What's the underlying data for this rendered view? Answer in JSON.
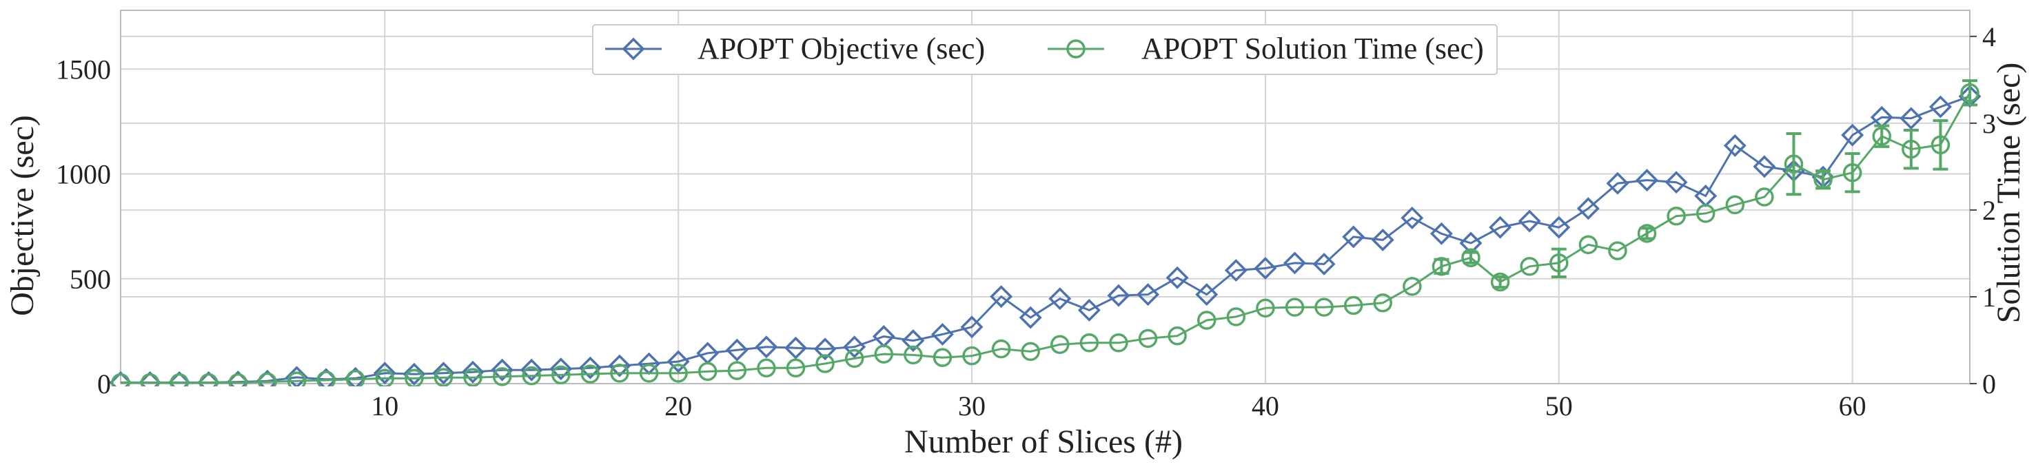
{
  "chart_data": {
    "type": "line",
    "xlabel": "Number of Slices (#)",
    "ylabel_left": "Objective (sec)",
    "ylabel_right": "Solution Time (sec)",
    "xlim": [
      1,
      64
    ],
    "ylim_left": [
      0,
      1780
    ],
    "ylim_right": [
      0,
      4.3
    ],
    "x_ticks": [
      10,
      20,
      30,
      40,
      50,
      60
    ],
    "y_ticks_left": [
      0,
      500,
      1000,
      1500
    ],
    "y_ticks_right": [
      0,
      1,
      2,
      3,
      4
    ],
    "grid": true,
    "legend_position": "top-center",
    "x": [
      1,
      2,
      3,
      4,
      5,
      6,
      7,
      8,
      9,
      10,
      11,
      12,
      13,
      14,
      15,
      16,
      17,
      18,
      19,
      20,
      21,
      22,
      23,
      24,
      25,
      26,
      27,
      28,
      29,
      30,
      31,
      32,
      33,
      34,
      35,
      36,
      37,
      38,
      39,
      40,
      41,
      42,
      43,
      44,
      45,
      46,
      47,
      48,
      49,
      50,
      51,
      52,
      53,
      54,
      55,
      56,
      57,
      58,
      59,
      60,
      61,
      62,
      63,
      64
    ],
    "series": [
      {
        "name": "APOPT Objective (sec)",
        "axis": "left",
        "color": "#4c72b0",
        "marker": "diamond",
        "values": [
          5,
          5,
          5,
          5,
          8,
          12,
          30,
          20,
          25,
          50,
          45,
          50,
          55,
          65,
          65,
          70,
          75,
          85,
          95,
          105,
          145,
          160,
          175,
          170,
          165,
          175,
          225,
          205,
          235,
          270,
          415,
          315,
          405,
          350,
          420,
          425,
          505,
          425,
          540,
          550,
          575,
          570,
          700,
          685,
          790,
          715,
          670,
          745,
          775,
          745,
          835,
          955,
          970,
          960,
          895,
          1135,
          1035,
          1015,
          985,
          1185,
          1270,
          1265,
          1320,
          1370
        ]
      },
      {
        "name": "APOPT Solution Time (sec)",
        "axis": "right",
        "color": "#55a868",
        "marker": "circle",
        "values": [
          0.01,
          0.01,
          0.01,
          0.01,
          0.01,
          0.02,
          0.03,
          0.04,
          0.05,
          0.06,
          0.06,
          0.07,
          0.07,
          0.08,
          0.09,
          0.1,
          0.11,
          0.12,
          0.12,
          0.12,
          0.14,
          0.15,
          0.18,
          0.18,
          0.23,
          0.29,
          0.34,
          0.33,
          0.3,
          0.32,
          0.4,
          0.37,
          0.45,
          0.47,
          0.47,
          0.52,
          0.55,
          0.73,
          0.77,
          0.87,
          0.88,
          0.88,
          0.9,
          0.93,
          1.12,
          1.35,
          1.45,
          1.17,
          1.35,
          1.39,
          1.6,
          1.53,
          1.73,
          1.93,
          1.96,
          2.06,
          2.15,
          2.53,
          2.35,
          2.43,
          2.85,
          2.7,
          2.75,
          3.35
        ]
      }
    ],
    "error_bars": {
      "series": "APOPT Solution Time (sec)",
      "x": [
        46,
        47,
        48,
        50,
        53,
        58,
        59,
        60,
        61,
        62,
        63,
        64
      ],
      "yerr": [
        0.08,
        0.06,
        0.06,
        0.16,
        0.06,
        0.35,
        0.1,
        0.22,
        0.12,
        0.22,
        0.28,
        0.14
      ]
    }
  }
}
